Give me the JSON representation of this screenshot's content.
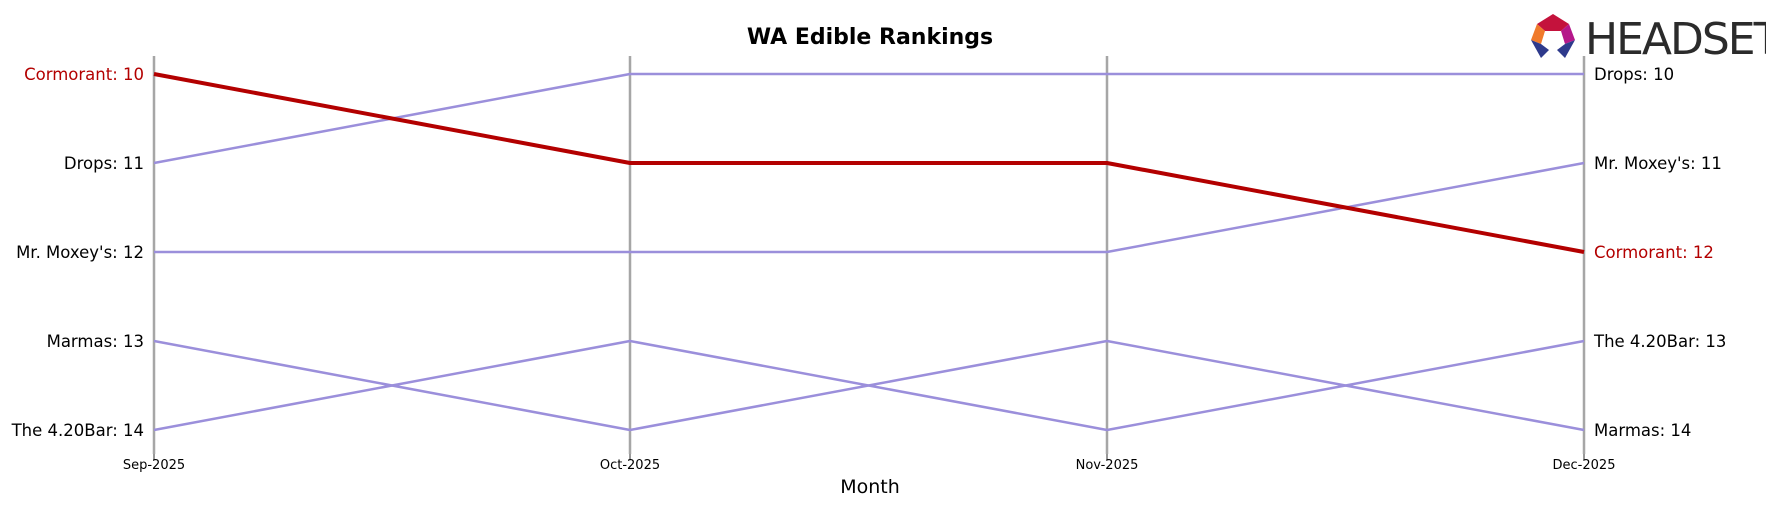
{
  "chart_data": {
    "type": "line",
    "title": "WA Edible Rankings",
    "xlabel": "Month",
    "ylabel": "",
    "categories": [
      "Sep-2025",
      "Oct-2025",
      "Nov-2025",
      "Dec-2025"
    ],
    "ylim": [
      14,
      10
    ],
    "y_inverted": true,
    "grid": false,
    "highlight_color": "#b30000",
    "default_color": "#9b8fdb",
    "series": [
      {
        "name": "Cormorant",
        "values": [
          10,
          11,
          11,
          12
        ],
        "highlight": true
      },
      {
        "name": "Drops",
        "values": [
          11,
          10,
          10,
          10
        ],
        "highlight": false
      },
      {
        "name": "Mr. Moxey's",
        "values": [
          12,
          12,
          12,
          11
        ],
        "highlight": false
      },
      {
        "name": "Marmas",
        "values": [
          13,
          14,
          13,
          14
        ],
        "highlight": false
      },
      {
        "name": "The 4.20Bar",
        "values": [
          14,
          13,
          14,
          13
        ],
        "highlight": false
      }
    ],
    "left_labels": [
      {
        "text": "Cormorant: 10",
        "rank": 10,
        "highlight": true
      },
      {
        "text": "Drops: 11",
        "rank": 11,
        "highlight": false
      },
      {
        "text": "Mr. Moxey's: 12",
        "rank": 12,
        "highlight": false
      },
      {
        "text": "Marmas: 13",
        "rank": 13,
        "highlight": false
      },
      {
        "text": "The 4.20Bar: 14",
        "rank": 14,
        "highlight": false
      }
    ],
    "right_labels": [
      {
        "text": "Drops: 10",
        "rank": 10,
        "highlight": false
      },
      {
        "text": "Mr. Moxey's: 11",
        "rank": 11,
        "highlight": false
      },
      {
        "text": "Cormorant: 12",
        "rank": 12,
        "highlight": true
      },
      {
        "text": "The 4.20Bar: 13",
        "rank": 13,
        "highlight": false
      },
      {
        "text": "Marmas: 14",
        "rank": 14,
        "highlight": false
      }
    ]
  },
  "logo": {
    "text": "HEADSET",
    "icon": "headset-hexagon-logo-icon"
  }
}
